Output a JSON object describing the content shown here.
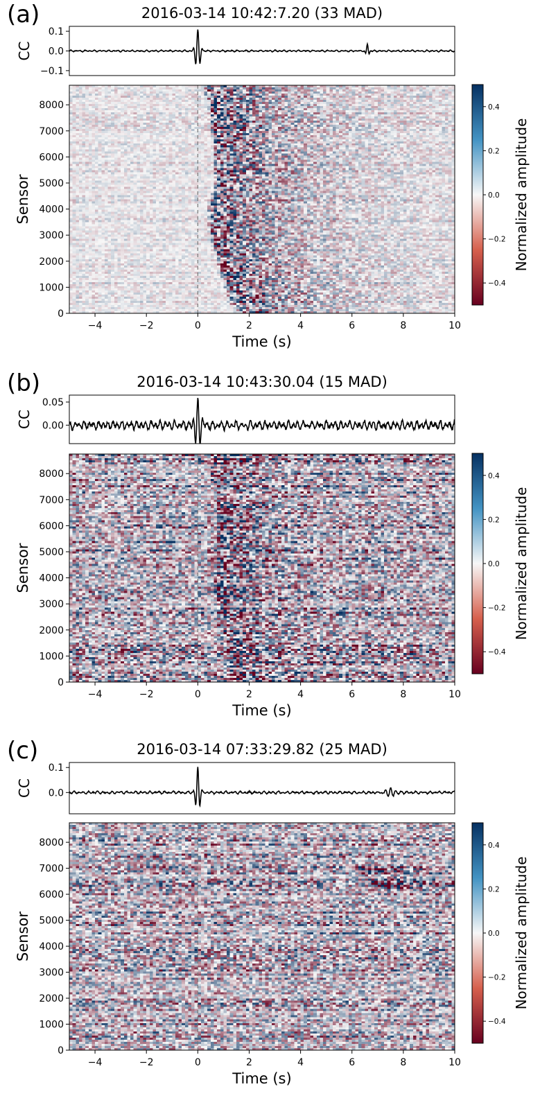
{
  "chart_data": [
    {
      "type": "heatmap",
      "panel_label": "(a)",
      "title": "2016-03-14 10:42:7.20 (33 MAD)",
      "cc_trace": {
        "ylabel": "CC",
        "yticks": [
          "0.1",
          "0.0",
          "−0.1"
        ],
        "ytick_values": [
          0.1,
          0.0,
          -0.1
        ],
        "ylim": [
          -0.125,
          0.125
        ],
        "noise_amp": 0.004,
        "spikes": [
          {
            "t": 0.0,
            "amp": 0.11,
            "width": 0.12,
            "freq": 5.5
          },
          {
            "t": 6.6,
            "amp": 0.035,
            "width": 0.08,
            "freq": 6
          }
        ]
      },
      "heatmap": {
        "xlabel": "Time (s)",
        "ylabel": "Sensor",
        "xlim": [
          -5,
          10
        ],
        "ylim": [
          0,
          8750
        ],
        "xticks": [
          -4,
          -2,
          0,
          2,
          4,
          6,
          8,
          10
        ],
        "xtick_labels": [
          "−4",
          "−2",
          "0",
          "2",
          "4",
          "6",
          "8",
          "10"
        ],
        "yticks": [
          0,
          1000,
          2000,
          3000,
          4000,
          5000,
          6000,
          7000,
          8000
        ],
        "ytick_labels": [
          "0",
          "1000",
          "2000",
          "3000",
          "4000",
          "5000",
          "6000",
          "7000",
          "8000"
        ],
        "noise_level": 0.18,
        "event_curve": [
          [
            8750,
            0.4
          ],
          [
            7000,
            0.7
          ],
          [
            5000,
            0.8
          ],
          [
            4000,
            0.5
          ],
          [
            3000,
            0.6
          ],
          [
            1000,
            1.2
          ],
          [
            0,
            1.6
          ]
        ],
        "event_strength": 0.85,
        "event_decay": 3.0
      },
      "colorbar": {
        "label": "Normalized amplitude",
        "ticks": [
          0.4,
          0.2,
          0.0,
          -0.2,
          -0.4
        ],
        "tick_labels": [
          "0.4",
          "0.2",
          "0.0",
          "−0.2",
          "−0.4"
        ],
        "range": [
          -0.5,
          0.5
        ],
        "colormap": "RdBu",
        "low_color": "#67001f",
        "mid_color": "#f7f7f7",
        "high_color": "#053061"
      }
    },
    {
      "type": "heatmap",
      "panel_label": "(b)",
      "title": "2016-03-14 10:43:30.04 (15 MAD)",
      "cc_trace": {
        "ylabel": "CC",
        "yticks": [
          "0.05",
          "0.00"
        ],
        "ytick_values": [
          0.05,
          0.0
        ],
        "ylim": [
          -0.04,
          0.065
        ],
        "noise_amp": 0.009,
        "spikes": [
          {
            "t": 0.0,
            "amp": 0.05,
            "width": 0.15,
            "freq": 5.5
          }
        ]
      },
      "heatmap": {
        "xlabel": "Time (s)",
        "ylabel": "Sensor",
        "xlim": [
          -5,
          10
        ],
        "ylim": [
          0,
          8750
        ],
        "xticks": [
          -4,
          -2,
          0,
          2,
          4,
          6,
          8,
          10
        ],
        "xtick_labels": [
          "−4",
          "−2",
          "0",
          "2",
          "4",
          "6",
          "8",
          "10"
        ],
        "yticks": [
          0,
          1000,
          2000,
          3000,
          4000,
          5000,
          6000,
          7000,
          8000
        ],
        "ytick_labels": [
          "0",
          "1000",
          "2000",
          "3000",
          "4000",
          "5000",
          "6000",
          "7000",
          "8000"
        ],
        "noise_level": 0.6,
        "event_curve": [
          [
            8750,
            0.5
          ],
          [
            7000,
            0.8
          ],
          [
            5000,
            0.9
          ],
          [
            3000,
            0.7
          ],
          [
            2000,
            1.0
          ],
          [
            0,
            1.4
          ]
        ],
        "event_strength": 0.45,
        "event_decay": 1.5
      },
      "colorbar": {
        "label": "Normalized amplitude",
        "ticks": [
          0.4,
          0.2,
          0.0,
          -0.2,
          -0.4
        ],
        "tick_labels": [
          "0.4",
          "0.2",
          "0.0",
          "−0.2",
          "−0.4"
        ],
        "range": [
          -0.5,
          0.5
        ],
        "colormap": "RdBu",
        "low_color": "#67001f",
        "mid_color": "#f7f7f7",
        "high_color": "#053061"
      }
    },
    {
      "type": "heatmap",
      "panel_label": "(c)",
      "title": "2016-03-14 07:33:29.82 (25 MAD)",
      "cc_trace": {
        "ylabel": "CC",
        "yticks": [
          "0.1",
          "0.0"
        ],
        "ytick_values": [
          0.1,
          0.0
        ],
        "ylim": [
          -0.085,
          0.12
        ],
        "noise_amp": 0.005,
        "spikes": [
          {
            "t": 0.0,
            "amp": 0.1,
            "width": 0.1,
            "freq": 5.5
          },
          {
            "t": 7.5,
            "amp": 0.02,
            "width": 0.25,
            "freq": 5
          }
        ]
      },
      "heatmap": {
        "xlabel": "Time (s)",
        "ylabel": "Sensor",
        "xlim": [
          -5,
          10
        ],
        "ylim": [
          0,
          8750
        ],
        "xticks": [
          -4,
          -2,
          0,
          2,
          4,
          6,
          8,
          10
        ],
        "xtick_labels": [
          "−4",
          "−2",
          "0",
          "2",
          "4",
          "6",
          "8",
          "10"
        ],
        "yticks": [
          0,
          1000,
          2000,
          3000,
          4000,
          5000,
          6000,
          7000,
          8000
        ],
        "ytick_labels": [
          "0",
          "1000",
          "2000",
          "3000",
          "4000",
          "5000",
          "6000",
          "7000",
          "8000"
        ],
        "noise_level": 0.55,
        "event_curve": [
          [
            6900,
            6.2
          ],
          [
            6400,
            6.9
          ]
        ],
        "event_strength": 0.5,
        "event_decay": 1.5
      },
      "colorbar": {
        "label": "Normalized amplitude",
        "ticks": [
          0.4,
          0.2,
          0.0,
          -0.2,
          -0.4
        ],
        "tick_labels": [
          "0.4",
          "0.2",
          "0.0",
          "−0.2",
          "−0.4"
        ],
        "range": [
          -0.5,
          0.5
        ],
        "colormap": "RdBu",
        "low_color": "#67001f",
        "mid_color": "#f7f7f7",
        "high_color": "#053061"
      }
    }
  ]
}
